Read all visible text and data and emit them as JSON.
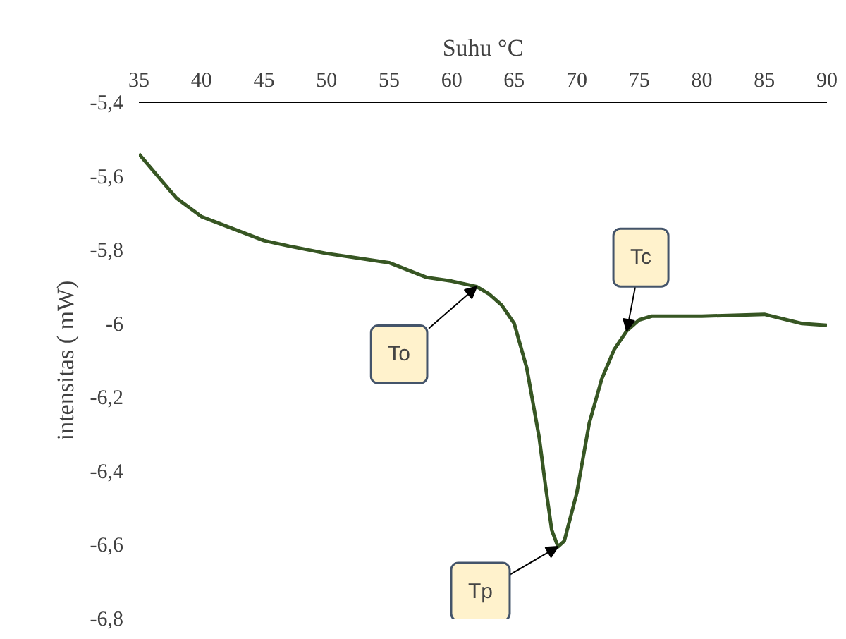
{
  "chart_data": {
    "type": "line",
    "xlabel": "Suhu °C",
    "ylabel": "intensitas ( mW)",
    "x": [
      35,
      38,
      40,
      45,
      47,
      50,
      55,
      58,
      60,
      62,
      63,
      64,
      65,
      66,
      67,
      67.5,
      68,
      68.5,
      69,
      70,
      71,
      72,
      73,
      74,
      75,
      76,
      80,
      85,
      88,
      90
    ],
    "series": [
      {
        "color": "#375623",
        "values": [
          -5.54,
          -5.66,
          -5.71,
          -5.775,
          -5.79,
          -5.81,
          -5.835,
          -5.875,
          -5.885,
          -5.9,
          -5.92,
          -5.95,
          -6.0,
          -6.12,
          -6.31,
          -6.44,
          -6.56,
          -6.605,
          -6.59,
          -6.46,
          -6.27,
          -6.15,
          -6.07,
          -6.02,
          -5.99,
          -5.98,
          -5.98,
          -5.975,
          -6.0,
          -6.005
        ]
      }
    ],
    "xlim": [
      35,
      90
    ],
    "xticks": [
      35,
      40,
      45,
      50,
      55,
      60,
      65,
      70,
      75,
      80,
      85,
      90
    ],
    "ylim": [
      -6.8,
      -5.4
    ],
    "yticks": [
      {
        "value": -5.4,
        "label": "-5,4"
      },
      {
        "value": -5.6,
        "label": "-5,6"
      },
      {
        "value": -5.8,
        "label": "-5,8"
      },
      {
        "value": -6,
        "label": "-6"
      },
      {
        "value": -6.2,
        "label": "-6,2"
      },
      {
        "value": -6.4,
        "label": "-6,4"
      },
      {
        "value": -6.6,
        "label": "-6,6"
      },
      {
        "value": -6.8,
        "label": "-6,8"
      }
    ],
    "grid": false,
    "marker": "none",
    "line_style": "solid",
    "annotations": [
      {
        "text": "To",
        "x": 62,
        "y": -5.9
      },
      {
        "text": "Tp",
        "x": 68.5,
        "y": -6.605
      },
      {
        "text": "Tc",
        "x": 74,
        "y": -6.02
      }
    ]
  }
}
